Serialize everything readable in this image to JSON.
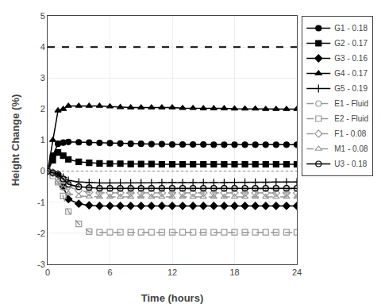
{
  "chart_data": {
    "type": "line",
    "xlabel": "Time (hours)",
    "ylabel": "Height Change (%)",
    "xlim": [
      0,
      24
    ],
    "ylim": [
      -3,
      5
    ],
    "xticks": [
      0,
      6,
      12,
      18,
      24
    ],
    "yticks": [
      -3,
      -2,
      -1,
      0,
      1,
      2,
      3,
      4,
      5
    ],
    "grid": true,
    "legend": "upper right",
    "x": [
      0,
      0.5,
      1,
      1.5,
      2,
      3,
      4,
      5,
      6,
      7,
      8,
      9,
      10,
      11,
      12,
      13,
      14,
      15,
      16,
      17,
      18,
      19,
      20,
      21,
      22,
      23,
      24
    ],
    "series": [
      {
        "name": "G1 - 0.18",
        "color": "#000000",
        "line_style": "solid",
        "marker": "circle",
        "values": [
          0,
          0.5,
          0.88,
          0.92,
          0.94,
          0.93,
          0.92,
          0.91,
          0.9,
          0.89,
          0.88,
          0.88,
          0.87,
          0.87,
          0.86,
          0.86,
          0.86,
          0.86,
          0.85,
          0.85,
          0.85,
          0.85,
          0.85,
          0.85,
          0.85,
          0.85,
          0.85
        ]
      },
      {
        "name": "G2 - 0.17",
        "color": "#000000",
        "line_style": "solid",
        "marker": "square",
        "values": [
          0,
          0.35,
          0.6,
          0.5,
          0.38,
          0.3,
          0.27,
          0.25,
          0.24,
          0.24,
          0.23,
          0.23,
          0.23,
          0.22,
          0.22,
          0.22,
          0.22,
          0.22,
          0.22,
          0.22,
          0.22,
          0.22,
          0.22,
          0.22,
          0.22,
          0.22,
          0.22
        ]
      },
      {
        "name": "G3 - 0.16",
        "color": "#000000",
        "line_style": "solid",
        "marker": "diamond",
        "values": [
          0,
          -0.05,
          -0.1,
          -0.5,
          -0.9,
          -1.05,
          -1.1,
          -1.12,
          -1.12,
          -1.12,
          -1.12,
          -1.12,
          -1.12,
          -1.12,
          -1.12,
          -1.12,
          -1.12,
          -1.12,
          -1.12,
          -1.12,
          -1.12,
          -1.12,
          -1.12,
          -1.12,
          -1.12,
          -1.12,
          -1.12
        ]
      },
      {
        "name": "G4 - 0.17",
        "color": "#000000",
        "line_style": "solid",
        "marker": "triangle-up",
        "values": [
          0,
          1.0,
          1.95,
          2.0,
          2.1,
          2.1,
          2.1,
          2.1,
          2.08,
          2.06,
          2.05,
          2.05,
          2.05,
          2.05,
          2.05,
          2.03,
          2.03,
          2.02,
          2.02,
          2.02,
          2.01,
          2.01,
          2.01,
          2.0,
          2.0,
          2.0,
          2.0
        ]
      },
      {
        "name": "G5 - 0.19",
        "color": "#000000",
        "line_style": "solid",
        "marker": "cross-thin",
        "values": [
          0,
          -0.05,
          -0.1,
          -0.2,
          -0.3,
          -0.35,
          -0.37,
          -0.38,
          -0.38,
          -0.38,
          -0.38,
          -0.38,
          -0.38,
          -0.37,
          -0.37,
          -0.37,
          -0.37,
          -0.37,
          -0.37,
          -0.37,
          -0.36,
          -0.36,
          -0.36,
          -0.36,
          -0.35,
          -0.35,
          -0.35
        ]
      },
      {
        "name": "E1 - Fluid",
        "color": "#999999",
        "line_style": "dashed",
        "marker": "circle-open",
        "values": [
          0,
          -0.05,
          -0.1,
          -0.3,
          -0.45,
          -0.52,
          -0.55,
          -0.57,
          -0.57,
          -0.57,
          -0.57,
          -0.57,
          -0.57,
          -0.57,
          -0.57,
          -0.57,
          -0.57,
          -0.57,
          -0.57,
          -0.57,
          -0.57,
          -0.57,
          -0.57,
          -0.57,
          -0.57,
          -0.57,
          -0.57
        ]
      },
      {
        "name": "E2 - Fluid",
        "color": "#999999",
        "line_style": "dashed",
        "marker": "square-open",
        "values": [
          0,
          -0.15,
          -0.35,
          -0.8,
          -1.3,
          -1.7,
          -1.95,
          -1.97,
          -1.97,
          -1.97,
          -1.97,
          -1.97,
          -1.97,
          -1.97,
          -1.97,
          -1.97,
          -1.97,
          -1.97,
          -1.97,
          -1.97,
          -1.97,
          -1.97,
          -1.97,
          -1.97,
          -1.97,
          -1.97,
          -1.97
        ]
      },
      {
        "name": "F1 - 0.08",
        "color": "#999999",
        "line_style": "dashed",
        "marker": "diamond-open",
        "values": [
          0,
          -0.05,
          -0.1,
          -0.3,
          -0.5,
          -0.62,
          -0.68,
          -0.7,
          -0.7,
          -0.7,
          -0.7,
          -0.7,
          -0.7,
          -0.7,
          -0.7,
          -0.7,
          -0.7,
          -0.7,
          -0.7,
          -0.7,
          -0.7,
          -0.7,
          -0.7,
          -0.7,
          -0.7,
          -0.7,
          -0.7
        ]
      },
      {
        "name": "M1 - 0.08",
        "color": "#999999",
        "line_style": "dashed",
        "marker": "triangle-up-open",
        "values": [
          0,
          -0.1,
          -0.35,
          -0.55,
          -0.72,
          -0.8,
          -0.82,
          -0.83,
          -0.83,
          -0.83,
          -0.83,
          -0.83,
          -0.83,
          -0.83,
          -0.83,
          -0.83,
          -0.83,
          -0.83,
          -0.83,
          -0.83,
          -0.83,
          -0.83,
          -0.83,
          -0.83,
          -0.83,
          -0.83,
          -0.83
        ]
      },
      {
        "name": "U3 - 0.18",
        "color": "#000000",
        "line_style": "solid",
        "marker": "circle-open",
        "values": [
          0,
          -0.05,
          -0.1,
          -0.25,
          -0.42,
          -0.5,
          -0.53,
          -0.55,
          -0.55,
          -0.55,
          -0.55,
          -0.55,
          -0.55,
          -0.55,
          -0.55,
          -0.55,
          -0.55,
          -0.55,
          -0.55,
          -0.55,
          -0.55,
          -0.55,
          -0.55,
          -0.55,
          -0.55,
          -0.55,
          -0.55
        ]
      }
    ],
    "hlines": [
      {
        "y": 4.0,
        "color": "#000000",
        "line_style": "dashed"
      },
      {
        "y": 0,
        "color": "#888888",
        "line_style": "dotted"
      }
    ]
  }
}
